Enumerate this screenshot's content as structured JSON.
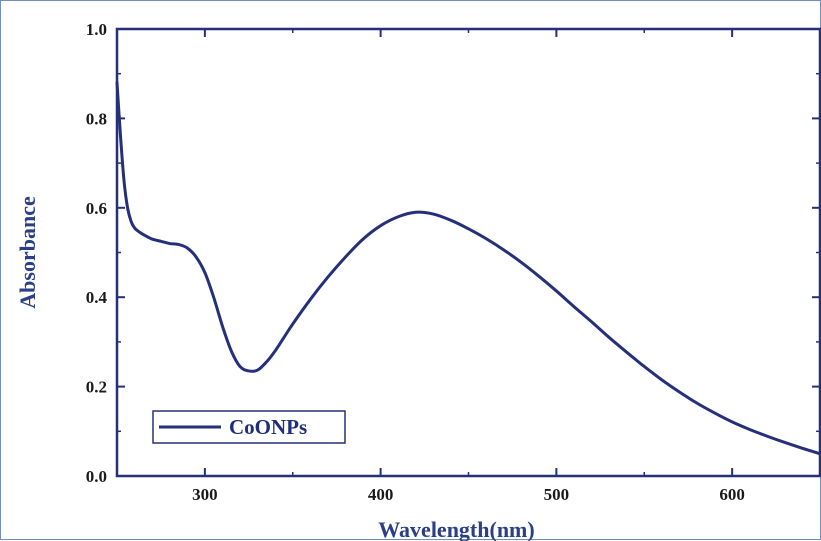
{
  "chart_data": {
    "type": "line",
    "xlabel": "Wavelength(nm)",
    "ylabel": "Absorbance",
    "xlim": [
      250,
      650
    ],
    "ylim": [
      0.0,
      1.0
    ],
    "x_ticks": [
      "300",
      "400",
      "500",
      "600"
    ],
    "y_ticks": [
      "0.0",
      "0.2",
      "0.4",
      "0.6",
      "0.8",
      "1.0"
    ],
    "grid": false,
    "legend_position": "bottom-left",
    "line_color": "#26307a",
    "series": [
      {
        "name": "CoONPs",
        "x": [
          250,
          252,
          254,
          256,
          258,
          260,
          263,
          266,
          270,
          275,
          280,
          285,
          290,
          295,
          300,
          305,
          310,
          315,
          320,
          325,
          330,
          335,
          340,
          345,
          350,
          360,
          370,
          380,
          390,
          400,
          410,
          420,
          430,
          440,
          450,
          460,
          470,
          480,
          490,
          500,
          510,
          520,
          530,
          540,
          550,
          560,
          570,
          580,
          590,
          600,
          610,
          620,
          630,
          640,
          650
        ],
        "y": [
          0.88,
          0.76,
          0.66,
          0.6,
          0.57,
          0.555,
          0.545,
          0.538,
          0.53,
          0.525,
          0.52,
          0.518,
          0.51,
          0.49,
          0.455,
          0.4,
          0.335,
          0.28,
          0.245,
          0.235,
          0.237,
          0.255,
          0.28,
          0.31,
          0.34,
          0.395,
          0.445,
          0.49,
          0.53,
          0.56,
          0.58,
          0.59,
          0.586,
          0.572,
          0.553,
          0.531,
          0.506,
          0.478,
          0.447,
          0.414,
          0.379,
          0.345,
          0.31,
          0.277,
          0.245,
          0.215,
          0.188,
          0.163,
          0.141,
          0.121,
          0.104,
          0.089,
          0.075,
          0.062,
          0.05
        ]
      }
    ]
  }
}
